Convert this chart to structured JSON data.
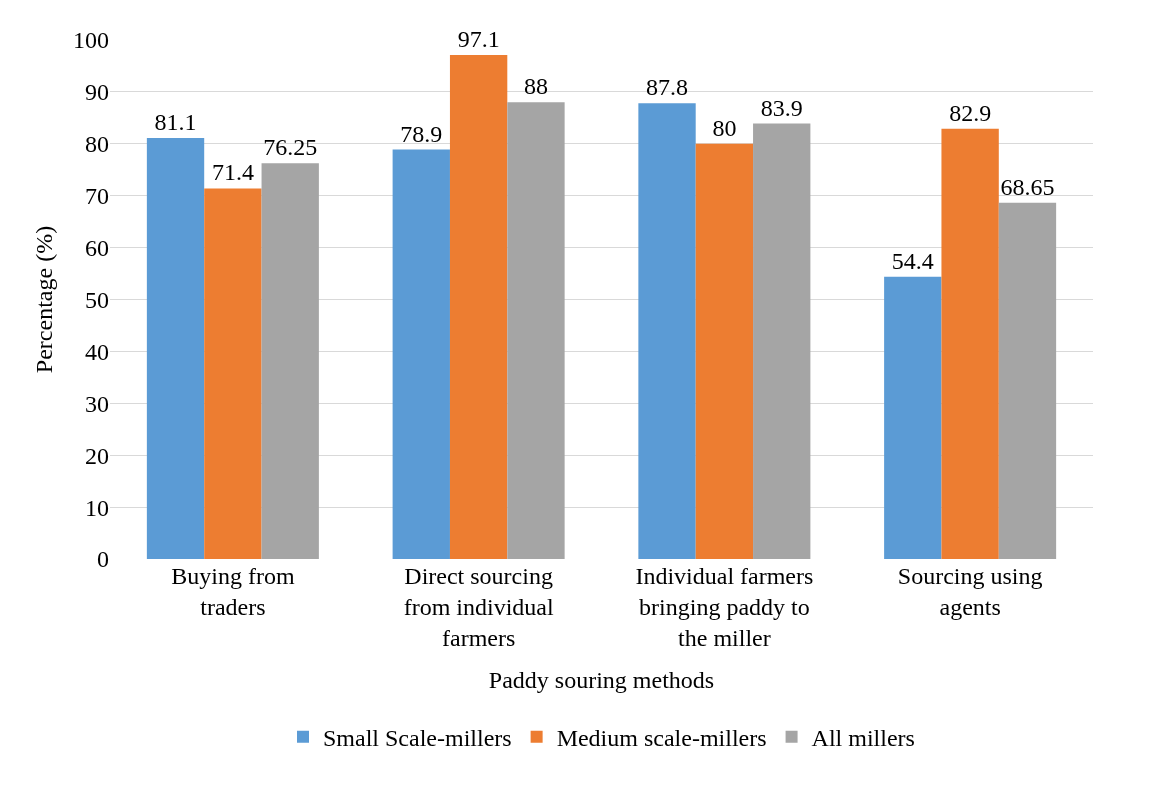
{
  "chart_data": {
    "type": "bar",
    "xlabel": "Paddy souring methods",
    "ylabel": "Percentage (%)",
    "categories": [
      "Buying from traders",
      "Direct sourcing from individual farmers",
      "Individual farmers bringing paddy to the miller",
      "Sourcing using agents"
    ],
    "series": [
      {
        "name": "Small Scale-millers",
        "color": "#5b9bd5",
        "values": [
          81.1,
          78.9,
          87.8,
          54.4
        ]
      },
      {
        "name": "Medium scale-millers",
        "color": "#ed7d31",
        "values": [
          71.4,
          97.1,
          80,
          82.9
        ]
      },
      {
        "name": "All millers",
        "color": "#a5a5a5",
        "values": [
          76.25,
          88,
          83.9,
          68.65
        ]
      }
    ],
    "ylim": [
      0,
      100
    ],
    "yticks": [
      0,
      10,
      20,
      30,
      40,
      50,
      60,
      70,
      80,
      90,
      100
    ],
    "grid": "y",
    "legend": "bottom",
    "data_labels": true
  }
}
